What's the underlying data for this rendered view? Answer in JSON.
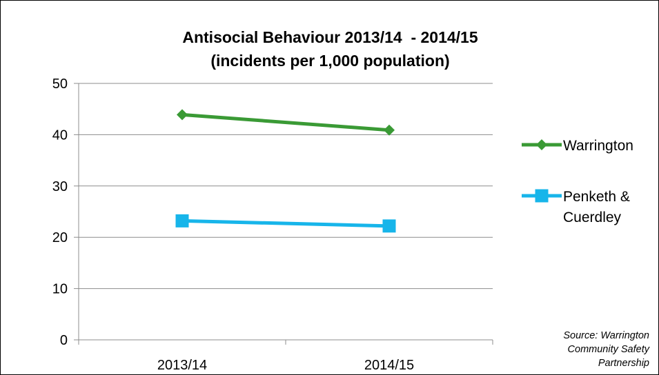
{
  "chart_data": {
    "type": "line",
    "title_line1": "Antisocial Behaviour 2013/14  - 2014/15",
    "title_line2": "(incidents per 1,000 population)",
    "categories": [
      "2013/14",
      "2014/15"
    ],
    "ylim": [
      0,
      50
    ],
    "yticks": [
      0,
      10,
      20,
      30,
      40,
      50
    ],
    "grid": true,
    "legend_position": "right",
    "series": [
      {
        "name": "Warrington",
        "values": [
          43.9,
          40.9
        ],
        "color": "#3a9a35",
        "marker": "diamond"
      },
      {
        "name": "Penketh & Cuerdley",
        "name_lines": [
          "Penketh &",
          "Cuerdley"
        ],
        "values": [
          23.2,
          22.2
        ],
        "color": "#17b5ea",
        "marker": "square"
      }
    ]
  },
  "source": {
    "lines": [
      "Source: Warrington",
      "Community Safety",
      "Partnership"
    ]
  }
}
